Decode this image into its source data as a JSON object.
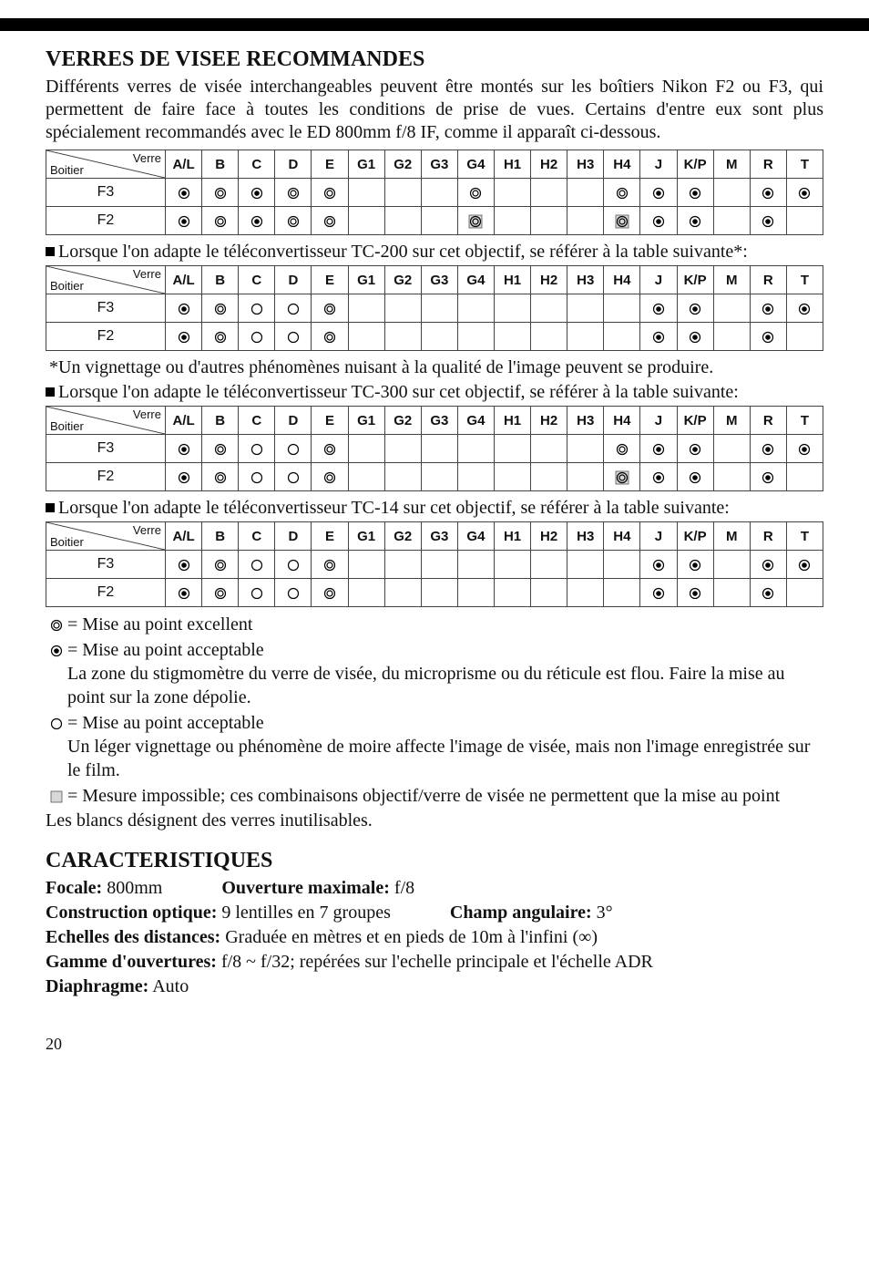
{
  "heading1": "VERRES DE VISEE RECOMMANDES",
  "intro": "Différents verres de visée interchangeables peuvent être montés sur les boîtiers Nikon F2 ou F3, qui permettent de faire face à toutes les conditions de prise de vues. Certains d'entre eux sont plus spécialement recommandés avec le ED 800mm f/8 IF, comme il apparaît ci-dessous.",
  "column_headers": [
    "A/L",
    "B",
    "C",
    "D",
    "E",
    "G1",
    "G2",
    "G3",
    "G4",
    "H1",
    "H2",
    "H3",
    "H4",
    "J",
    "K/P",
    "M",
    "R",
    "T"
  ],
  "diag_labels": {
    "verre": "Verre",
    "boitier": "Boitier"
  },
  "row_headers": [
    "F3",
    "F2"
  ],
  "tables": [
    {
      "rows": [
        [
          "dot",
          "ring",
          "dot",
          "ring",
          "ring",
          "",
          "",
          "",
          "ring",
          "",
          "",
          "",
          "ring",
          "dot",
          "dot",
          "",
          "dot",
          "dot"
        ],
        [
          "dot",
          "ring",
          "dot",
          "ring",
          "ring",
          "",
          "",
          "",
          "ring_sq",
          "",
          "",
          "",
          "ring_sq",
          "dot",
          "dot",
          "",
          "dot",
          ""
        ]
      ]
    },
    {
      "rows": [
        [
          "dot",
          "ring",
          "open",
          "open",
          "ring",
          "",
          "",
          "",
          "",
          "",
          "",
          "",
          "",
          "dot",
          "dot",
          "",
          "dot",
          "dot"
        ],
        [
          "dot",
          "ring",
          "open",
          "open",
          "ring",
          "",
          "",
          "",
          "",
          "",
          "",
          "",
          "",
          "dot",
          "dot",
          "",
          "dot",
          ""
        ]
      ]
    },
    {
      "rows": [
        [
          "dot",
          "ring",
          "open",
          "open",
          "ring",
          "",
          "",
          "",
          "",
          "",
          "",
          "",
          "ring",
          "dot",
          "dot",
          "",
          "dot",
          "dot"
        ],
        [
          "dot",
          "ring",
          "open",
          "open",
          "ring",
          "",
          "",
          "",
          "",
          "",
          "",
          "",
          "ring_sq",
          "dot",
          "dot",
          "",
          "dot",
          ""
        ]
      ]
    },
    {
      "rows": [
        [
          "dot",
          "ring",
          "open",
          "open",
          "ring",
          "",
          "",
          "",
          "",
          "",
          "",
          "",
          "",
          "dot",
          "dot",
          "",
          "dot",
          "dot"
        ],
        [
          "dot",
          "ring",
          "open",
          "open",
          "ring",
          "",
          "",
          "",
          "",
          "",
          "",
          "",
          "",
          "dot",
          "dot",
          "",
          "dot",
          ""
        ]
      ]
    }
  ],
  "note_tc200": "Lorsque l'on adapte le téléconvertisseur TC-200 sur cet objectif, se référer à la table suivante*:",
  "note_vignette": "*Un vignettage ou d'autres phénomènes nuisant à la qualité de l'image peuvent se produire.",
  "note_tc300": "Lorsque l'on adapte le téléconvertisseur TC-300 sur cet objectif, se référer à la table suivante:",
  "note_tc14": "Lorsque l'on adapte le téléconvertisseur TC-14 sur cet objectif, se référer à la table suivante:",
  "legend": {
    "ring": "= Mise au point excellent",
    "dot": "= Mise au point acceptable",
    "dot_sub": "La zone du stigmomètre du verre de visée, du microprisme ou du réticule est flou. Faire la mise au point sur la zone dépolie.",
    "open": "= Mise au point acceptable",
    "open_sub": "Un léger vignettage ou phénomène de moire affecte l'image de visée, mais non l'image enregistrée sur le film.",
    "square": "= Mesure impossible; ces combinaisons objectif/verre de visée ne permettent que la mise au point",
    "blanks": "Les blancs désignent des verres inutilisables."
  },
  "heading2": "CARACTERISTIQUES",
  "specs": {
    "focale_label": "Focale:",
    "focale_value": "800mm",
    "ouverture_label": "Ouverture maximale:",
    "ouverture_value": "f/8",
    "construction_label": "Construction optique:",
    "construction_value": "9 lentilles en 7 groupes",
    "champ_label": "Champ angulaire:",
    "champ_value": "3°",
    "echelles_label": "Echelles des distances:",
    "echelles_value": "Graduée en mètres et en pieds de 10m à l'infini (∞)",
    "gamme_label": "Gamme d'ouvertures:",
    "gamme_value": "f/8 ~ f/32; repérées sur l'echelle principale et l'échelle ADR",
    "diaphragme_label": "Diaphragme:",
    "diaphragme_value": "Auto"
  },
  "page_number": "20",
  "symbols": {
    "ring": "<svg class='sym' width='14' height='14'><circle cx='7' cy='7' r='5.5' fill='none' stroke='#000' stroke-width='1.2'/><circle cx='7' cy='7' r='3' fill='none' stroke='#000' stroke-width='1.2'/></svg>",
    "dot": "<svg class='sym' width='14' height='14'><circle cx='7' cy='7' r='5.5' fill='none' stroke='#000' stroke-width='1.2'/><circle cx='7' cy='7' r='2.8' fill='#000'/></svg>",
    "open": "<svg class='sym' width='14' height='14'><circle cx='7' cy='7' r='5.5' fill='none' stroke='#000' stroke-width='1.2'/></svg>",
    "ring_sq": "<svg class='sym' width='16' height='16'><rect x='1' y='1' width='14' height='14' fill='#d8d8d8' stroke='#555' stroke-width='0.8'/><circle cx='8' cy='8' r='5.5' fill='none' stroke='#000' stroke-width='1.2'/><circle cx='8' cy='8' r='3' fill='none' stroke='#000' stroke-width='1.2'/></svg>",
    "square": "<svg class='sym' width='14' height='14'><rect x='1' y='1' width='12' height='12' fill='#d8d8d8' stroke='#555' stroke-width='0.8'/></svg>"
  }
}
